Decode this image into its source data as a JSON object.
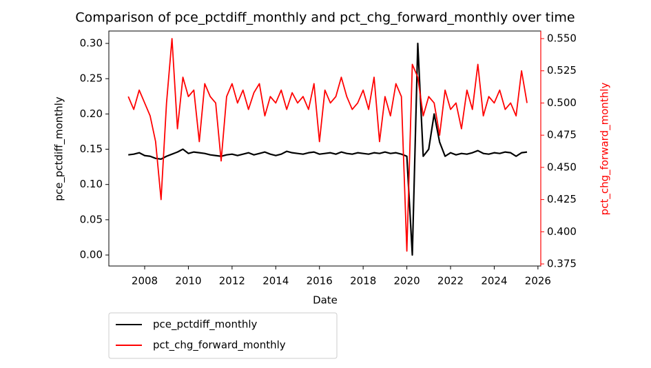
{
  "chart_data": {
    "type": "line",
    "title": "Comparison of pce_pctdiff_monthly and pct_chg_forward_monthly over time",
    "x_label": "Date",
    "y_label": "pce_pctdiff_monthly",
    "y2_label": "pct_chg_forward_monthly",
    "x": [
      2007.25,
      2007.5,
      2007.75,
      2008.0,
      2008.25,
      2008.5,
      2008.75,
      2009.0,
      2009.25,
      2009.5,
      2009.75,
      2010.0,
      2010.25,
      2010.5,
      2010.75,
      2011.0,
      2011.25,
      2011.5,
      2011.75,
      2012.0,
      2012.25,
      2012.5,
      2012.75,
      2013.0,
      2013.25,
      2013.5,
      2013.75,
      2014.0,
      2014.25,
      2014.5,
      2014.75,
      2015.0,
      2015.25,
      2015.5,
      2015.75,
      2016.0,
      2016.25,
      2016.5,
      2016.75,
      2017.0,
      2017.25,
      2017.5,
      2017.75,
      2018.0,
      2018.25,
      2018.5,
      2018.75,
      2019.0,
      2019.25,
      2019.5,
      2019.75,
      2020.0,
      2020.25,
      2020.5,
      2020.75,
      2021.0,
      2021.25,
      2021.5,
      2021.75,
      2022.0,
      2022.25,
      2022.5,
      2022.75,
      2023.0,
      2023.25,
      2023.5,
      2023.75,
      2024.0,
      2024.25,
      2024.5,
      2024.75,
      2025.0,
      2025.25,
      2025.5
    ],
    "series": [
      {
        "name": "pce_pctdiff_monthly",
        "color": "#000000",
        "axis": "y",
        "values": [
          0.142,
          0.143,
          0.145,
          0.141,
          0.14,
          0.137,
          0.136,
          0.14,
          0.143,
          0.146,
          0.15,
          0.144,
          0.146,
          0.145,
          0.144,
          0.142,
          0.141,
          0.14,
          0.142,
          0.143,
          0.141,
          0.143,
          0.145,
          0.142,
          0.144,
          0.146,
          0.143,
          0.141,
          0.143,
          0.147,
          0.145,
          0.144,
          0.143,
          0.145,
          0.146,
          0.143,
          0.144,
          0.145,
          0.143,
          0.146,
          0.144,
          0.143,
          0.145,
          0.144,
          0.143,
          0.145,
          0.144,
          0.146,
          0.144,
          0.145,
          0.143,
          0.14,
          0.0,
          0.3,
          0.14,
          0.15,
          0.2,
          0.16,
          0.14,
          0.145,
          0.142,
          0.144,
          0.143,
          0.145,
          0.148,
          0.144,
          0.143,
          0.145,
          0.144,
          0.146,
          0.145,
          0.14,
          0.145,
          0.146
        ]
      },
      {
        "name": "pct_chg_forward_monthly",
        "color": "#ff0000",
        "axis": "y2",
        "values": [
          0.505,
          0.495,
          0.51,
          0.5,
          0.49,
          0.47,
          0.425,
          0.5,
          0.55,
          0.48,
          0.52,
          0.505,
          0.51,
          0.47,
          0.515,
          0.505,
          0.5,
          0.455,
          0.505,
          0.515,
          0.5,
          0.51,
          0.495,
          0.508,
          0.515,
          0.49,
          0.505,
          0.5,
          0.51,
          0.495,
          0.508,
          0.5,
          0.505,
          0.495,
          0.515,
          0.47,
          0.51,
          0.5,
          0.505,
          0.52,
          0.505,
          0.495,
          0.5,
          0.51,
          0.495,
          0.52,
          0.47,
          0.505,
          0.49,
          0.515,
          0.505,
          0.385,
          0.53,
          0.52,
          0.49,
          0.505,
          0.5,
          0.475,
          0.51,
          0.495,
          0.5,
          0.48,
          0.51,
          0.495,
          0.53,
          0.49,
          0.505,
          0.5,
          0.51,
          0.495,
          0.5,
          0.49,
          0.525,
          0.5
        ]
      }
    ],
    "xlim": [
      2006.36,
      2026.13
    ],
    "xticks": [
      2008,
      2010,
      2012,
      2014,
      2016,
      2018,
      2020,
      2022,
      2024,
      2026
    ],
    "ylim": [
      -0.0156,
      0.3176
    ],
    "yticks": [
      {
        "value": 0,
        "label": "0.00"
      },
      {
        "value": 0.05,
        "label": "0.05"
      },
      {
        "value": 0.1,
        "label": "0.10"
      },
      {
        "value": 0.15,
        "label": "0.15"
      },
      {
        "value": 0.2,
        "label": "0.20"
      },
      {
        "value": 0.25,
        "label": "0.25"
      },
      {
        "value": 0.3,
        "label": "0.30"
      }
    ],
    "y2lim": [
      0.3734,
      0.5559
    ],
    "y2ticks": [
      {
        "value": 0.375,
        "label": "0.375"
      },
      {
        "value": 0.4,
        "label": "0.400"
      },
      {
        "value": 0.425,
        "label": "0.425"
      },
      {
        "value": 0.45,
        "label": "0.450"
      },
      {
        "value": 0.475,
        "label": "0.475"
      },
      {
        "value": 0.5,
        "label": "0.500"
      },
      {
        "value": 0.525,
        "label": "0.525"
      },
      {
        "value": 0.55,
        "label": "0.550"
      }
    ],
    "legend": "below"
  }
}
